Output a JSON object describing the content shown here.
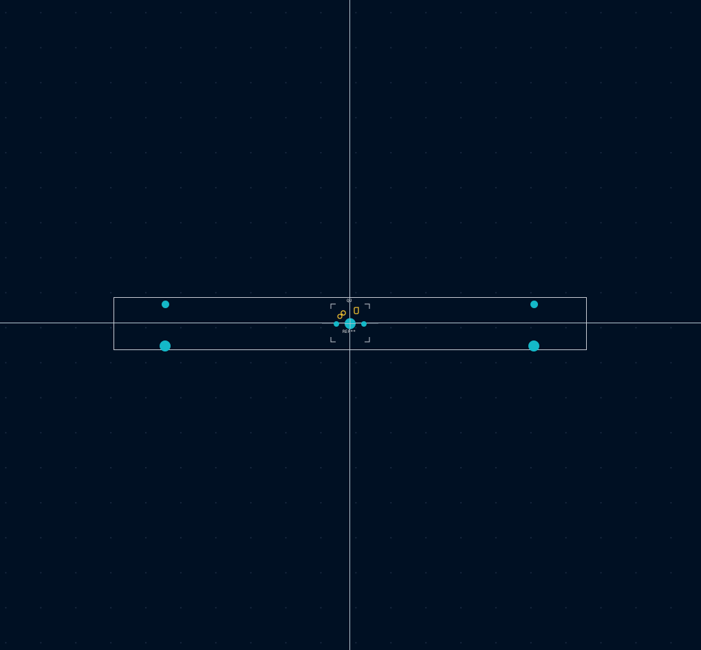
{
  "canvas": {
    "background_color": "#001023",
    "grid_dot_color": "#203048",
    "cursor_color": "#b8c4d0",
    "outline_color": "#c8ccd4"
  },
  "board": {
    "pad_color": "#14b8c8",
    "silkscreen_color": "#f0c030"
  },
  "footprint": {
    "value_text": "QU",
    "reference_text": "REF**"
  },
  "icons": {
    "mount_holes": "circle-pad-icon",
    "center_pad": "circle-pad-icon",
    "origin_marker": "crosshair-icon"
  }
}
